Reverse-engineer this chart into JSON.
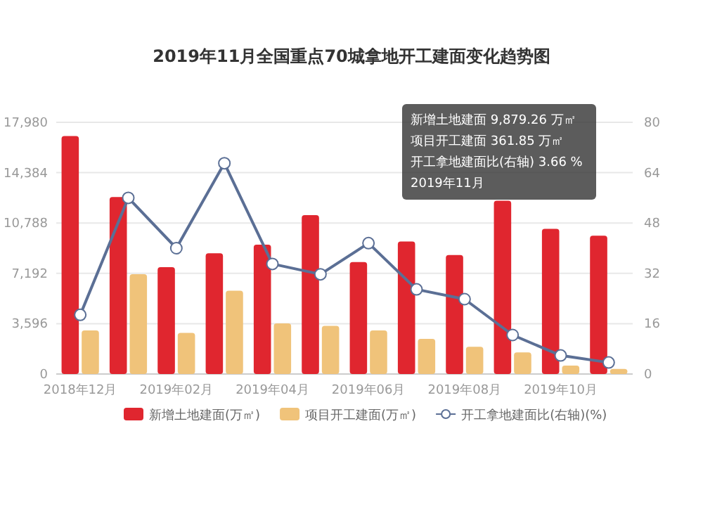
{
  "chart_data": {
    "type": "bar",
    "title": "2019年11月全国重点70城拿地开工建面变化趋势图",
    "categories": [
      "2018年12月",
      null,
      "2019年02月",
      null,
      "2019年04月",
      null,
      "2019年06月",
      null,
      "2019年08月",
      null,
      "2019年10月",
      null
    ],
    "series": [
      {
        "name": "新增土地建面(万㎡)",
        "color": "#e0262f",
        "values": [
          17000,
          12650,
          7630,
          8630,
          9240,
          11350,
          8000,
          9470,
          8500,
          12380,
          10370,
          9879.26
        ]
      },
      {
        "name": "项目开工建面(万㎡)",
        "color": "#f0c37a",
        "values": [
          3110,
          7130,
          2940,
          5950,
          3610,
          3440,
          3110,
          2510,
          1940,
          1540,
          600,
          361.85
        ]
      },
      {
        "name": "开工拿地建面比(右轴)(%)",
        "type": "line",
        "axis": "y2",
        "marker": "circle",
        "color": "#5b6f95",
        "values": [
          18.8,
          56,
          40,
          67,
          35,
          31.7,
          41.6,
          26.9,
          23.8,
          12.4,
          5.9,
          3.66
        ]
      }
    ],
    "ylim": [
      0,
      17980
    ],
    "yticks": [
      0,
      {
        "value": 3596,
        "label": "3,596"
      },
      {
        "value": 7192,
        "label": "7,192"
      },
      {
        "value": 10788,
        "label": "10,788"
      },
      {
        "value": 14384,
        "label": "14,384"
      },
      {
        "value": 17980,
        "label": "17,980"
      }
    ],
    "y2lim": [
      0,
      80
    ],
    "y2ticks": [
      0,
      16,
      32,
      48,
      64,
      80
    ],
    "grid": "y",
    "legend": "bottom",
    "annotations": [
      "新增土地建面 9,879.26 万㎡",
      "项目开工建面 361.85 万㎡",
      "开工拿地建面比(右轴) 3.66 %",
      "2019年11月"
    ]
  }
}
